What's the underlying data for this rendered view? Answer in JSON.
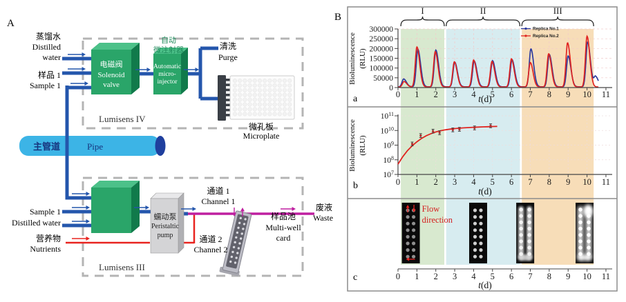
{
  "panel_a": {
    "label": "A",
    "top_unit": "Lumisens IV",
    "bottom_unit": "Lumisens III",
    "inputs_top": {
      "distilled": [
        "蒸馏水",
        "Distilled",
        "water"
      ],
      "sample": [
        "样品 1",
        "Sample 1"
      ]
    },
    "solenoid_valve": [
      "电磁阀",
      "Solenoid",
      "valve"
    ],
    "injector_cn": [
      "自动",
      "微注射器"
    ],
    "injector_en": [
      "Automatic",
      "micro-",
      "injector"
    ],
    "purge": [
      "清洗",
      "Purge"
    ],
    "microplate": [
      "微孔板",
      "Microplate"
    ],
    "pipe": [
      "主管道",
      "Pipe"
    ],
    "inputs_bottom": {
      "sample": "Sample 1",
      "distilled": "Distilled water",
      "nutrients": [
        "营养物",
        "Nutrients"
      ]
    },
    "pump": [
      "蠕动泵",
      "Peristaltic",
      "pump"
    ],
    "channel1": [
      "通道 1",
      "Channel 1"
    ],
    "channel2": [
      "通道 2",
      "Channel 2"
    ],
    "multiwell_card": [
      "样品池",
      "Multi-well",
      "card"
    ],
    "waste": [
      "废液",
      "Waste"
    ],
    "colors": {
      "water_line": "#2456ac",
      "nutrient_line": "#e8231f",
      "waste_line": "#bf1fa0",
      "valve_green": "#2aa569",
      "pipe_blue": "#3cb4e6",
      "pipe_cap": "#1f3f9e"
    }
  },
  "panel_b": {
    "label": "B",
    "sub_labels": [
      "a",
      "b",
      "c"
    ],
    "phases": [
      {
        "label": "I",
        "t_range": [
          0.15,
          2.45
        ]
      },
      {
        "label": "II",
        "t_range": [
          2.55,
          6.45
        ]
      },
      {
        "label": "III",
        "t_range": [
          6.55,
          10.35
        ]
      }
    ],
    "phase_colors": [
      "#d8e9cf",
      "#d7ecf0",
      "#f7ddb8"
    ],
    "flow_direction": [
      "Flow",
      "direction"
    ]
  },
  "chart_data": [
    {
      "id": "a",
      "type": "line",
      "ylabel_lines": [
        "Bioluminescence",
        "(RLU)"
      ],
      "xlabel": "t(d)",
      "xlim": [
        0,
        11
      ],
      "ylim": [
        0,
        300000
      ],
      "yticks": [
        0,
        50000,
        100000,
        150000,
        200000,
        250000,
        300000
      ],
      "xticks": [
        0,
        1,
        2,
        3,
        4,
        5,
        6,
        7,
        8,
        9,
        10,
        11
      ],
      "grid": true,
      "legend_position": "top-right",
      "series": [
        {
          "name": "Replica No.1",
          "color": "#2b3a9e",
          "baseline": 4000,
          "peaks": [
            [
              0.3,
              40000
            ],
            [
              1.05,
              192000
            ],
            [
              2.0,
              188000
            ],
            [
              3.0,
              126000
            ],
            [
              4.03,
              132000
            ],
            [
              5.0,
              134000
            ],
            [
              6.03,
              139000
            ],
            [
              7.03,
              194000
            ],
            [
              8.0,
              166000
            ],
            [
              9.0,
              158000
            ],
            [
              10.03,
              230000
            ],
            [
              10.45,
              52000
            ]
          ]
        },
        {
          "name": "Replica No.2",
          "color": "#e02420",
          "baseline": 3000,
          "peaks": [
            [
              0.32,
              28000
            ],
            [
              1.0,
              205000
            ],
            [
              1.97,
              181000
            ],
            [
              2.98,
              129000
            ],
            [
              4.0,
              138000
            ],
            [
              4.97,
              131000
            ],
            [
              6.0,
              144000
            ],
            [
              7.0,
              125000
            ],
            [
              7.97,
              170000
            ],
            [
              8.97,
              226000
            ],
            [
              10.0,
              260000
            ]
          ]
        }
      ]
    },
    {
      "id": "b",
      "type": "scatter-fit",
      "ylabel_lines": [
        "Bioluminescence",
        "(RLU)"
      ],
      "xlabel": "t(d)",
      "xlim": [
        0,
        11
      ],
      "yscale": "log",
      "ylim": [
        10000000.0,
        100000000000.0
      ],
      "ytick_labels": [
        "10^7",
        "10^8",
        "10^9",
        "10^10",
        "10^11"
      ],
      "xticks": [
        0,
        1,
        2,
        3,
        4,
        5,
        6,
        7,
        8,
        9,
        10,
        11
      ],
      "points": [
        {
          "t": 0.75,
          "y": 1200000000.0
        },
        {
          "t": 1.2,
          "y": 4500000000.0
        },
        {
          "t": 1.85,
          "y": 9000000000.0
        },
        {
          "t": 2.2,
          "y": 7000000000.0
        },
        {
          "t": 2.9,
          "y": 11000000000.0
        },
        {
          "t": 3.25,
          "y": 12000000000.0
        },
        {
          "t": 4.05,
          "y": 15000000000.0
        },
        {
          "t": 4.9,
          "y": 21000000000.0
        }
      ],
      "error_factor": 1.35,
      "fit_color": "#e02420",
      "fit_curve": [
        [
          0,
          50000000.0
        ],
        [
          0.25,
          160000000.0
        ],
        [
          0.5,
          420000000.0
        ],
        [
          0.75,
          900000000.0
        ],
        [
          1.0,
          1700000000.0
        ],
        [
          1.25,
          2900000000.0
        ],
        [
          1.5,
          4400000000.0
        ],
        [
          1.75,
          6100000000.0
        ],
        [
          2.0,
          7900000000.0
        ],
        [
          2.25,
          9600000000.0
        ],
        [
          2.5,
          11100000000.0
        ],
        [
          2.75,
          12400000000.0
        ],
        [
          3.0,
          13500000000.0
        ],
        [
          3.25,
          14400000000.0
        ],
        [
          3.5,
          15200000000.0
        ],
        [
          3.75,
          15900000000.0
        ],
        [
          4.0,
          16500000000.0
        ],
        [
          4.25,
          17100000000.0
        ],
        [
          4.5,
          17600000000.0
        ],
        [
          4.75,
          18100000000.0
        ],
        [
          5.0,
          18600000000.0
        ],
        [
          5.25,
          19000000000.0
        ]
      ]
    },
    {
      "id": "c",
      "type": "image-series",
      "xlabel": "t(d)",
      "xlim": [
        0,
        11
      ],
      "xticks": [
        0,
        1,
        2,
        3,
        4,
        5,
        6,
        7,
        8,
        9,
        10,
        11
      ],
      "cards": [
        {
          "t_center": 0.68,
          "brightness": "dim",
          "flow_arrows": true
        },
        {
          "t_center": 4.24,
          "brightness": "medium"
        },
        {
          "t_center": 6.73,
          "brightness": "bright"
        },
        {
          "t_center": 9.87,
          "brightness": "very-bright"
        }
      ]
    }
  ]
}
